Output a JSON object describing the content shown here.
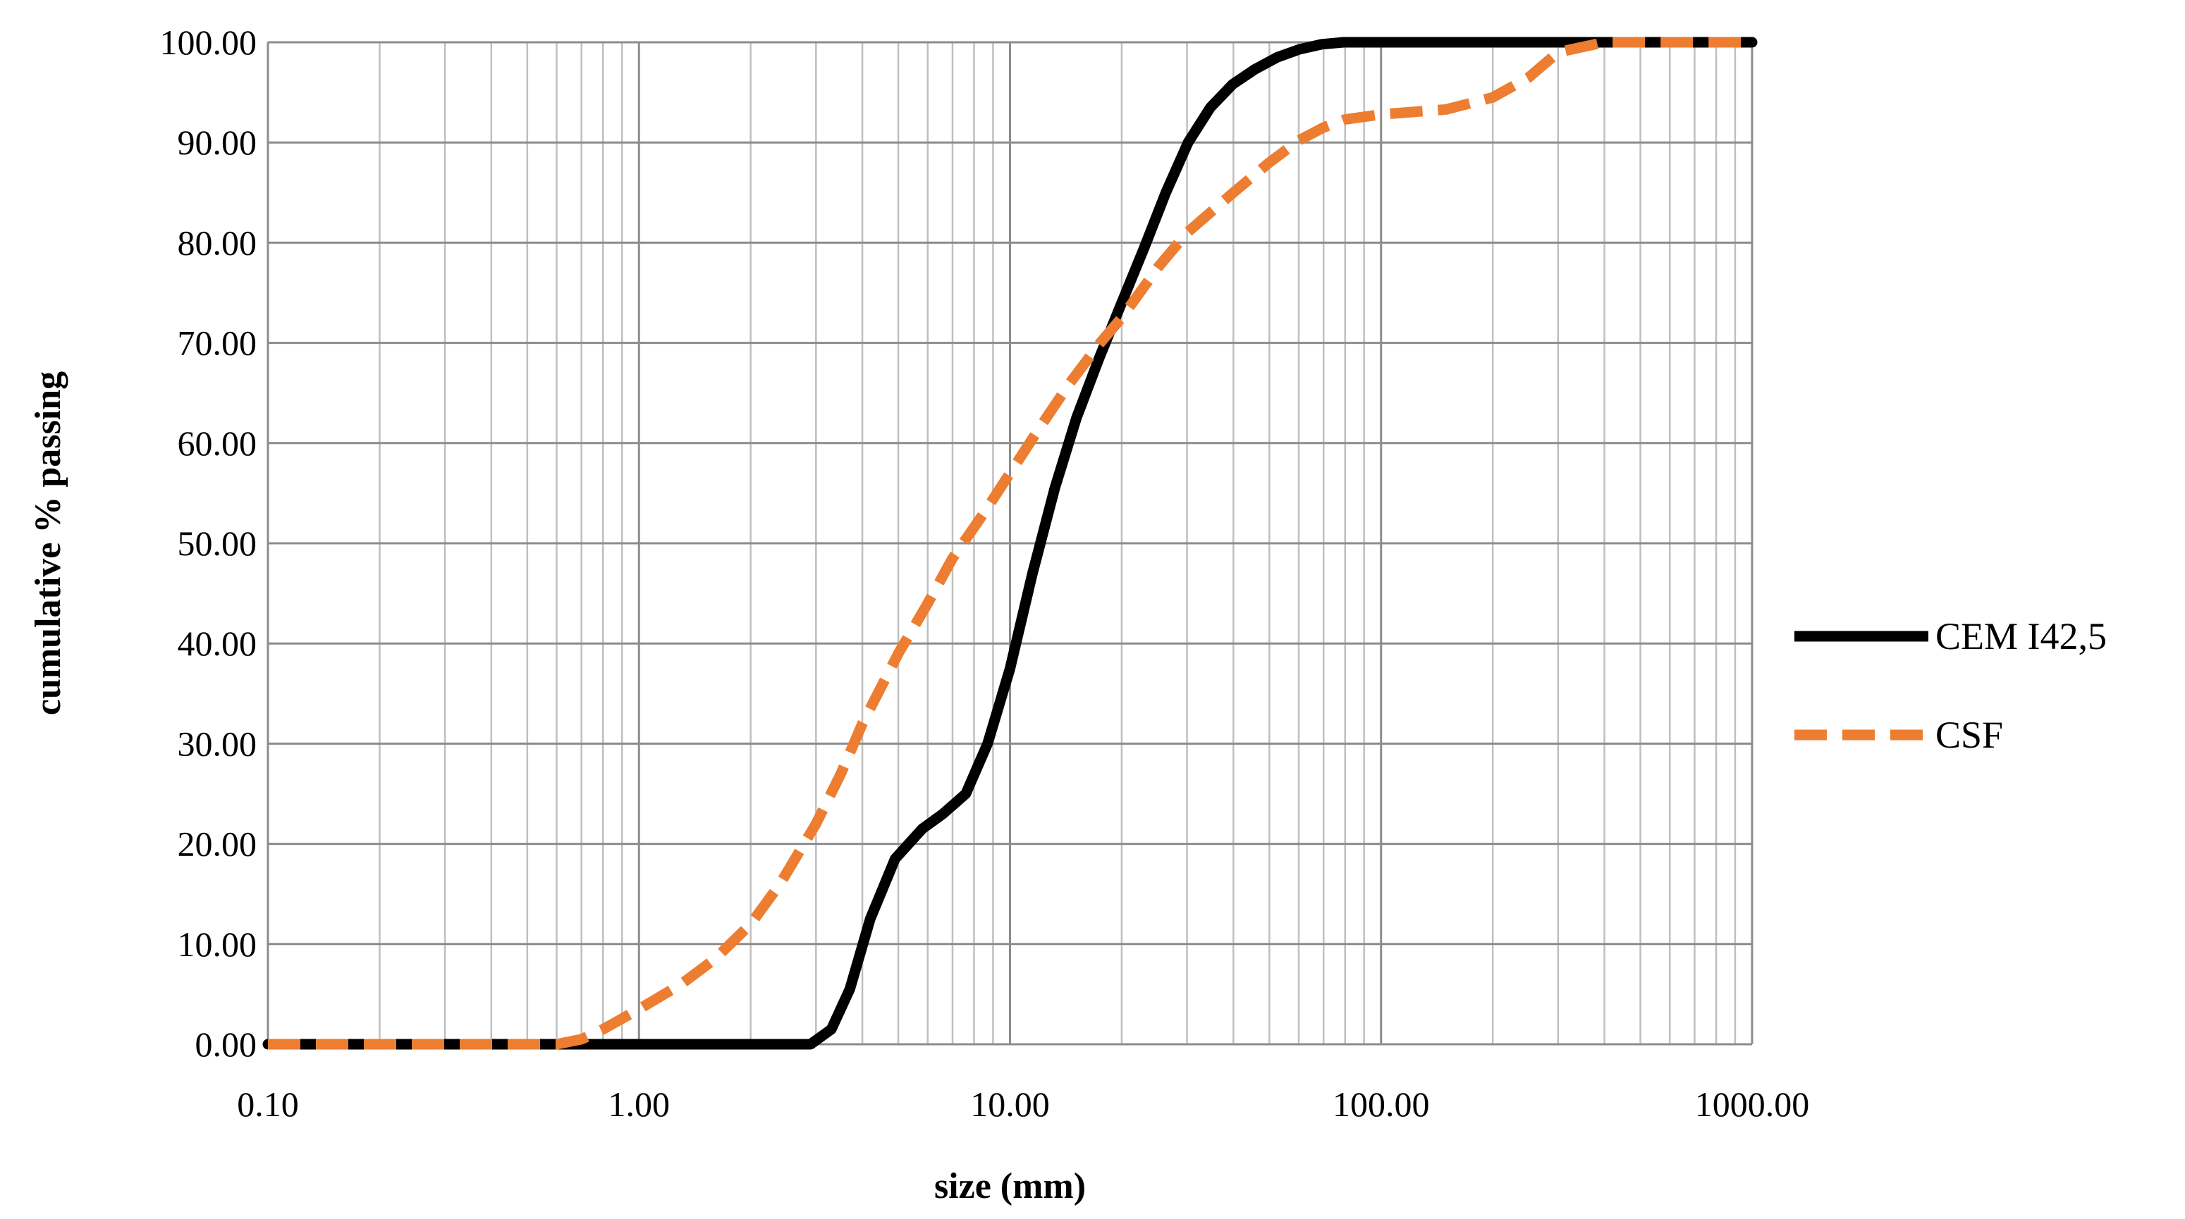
{
  "chart_data": {
    "type": "line",
    "title": "",
    "xlabel": "size (mm)",
    "ylabel": "cumulative % passing",
    "xscale": "log",
    "xlim": [
      0.1,
      1000
    ],
    "ylim": [
      0,
      100
    ],
    "grid": true,
    "legend_position": "right",
    "x_ticks": [
      0.1,
      1,
      10,
      100,
      1000
    ],
    "x_tick_labels": [
      "0.10",
      "1.00",
      "10.00",
      "100.00",
      "1000.00"
    ],
    "y_ticks": [
      0,
      10,
      20,
      30,
      40,
      50,
      60,
      70,
      80,
      90,
      100
    ],
    "y_tick_labels": [
      "0.00",
      "10.00",
      "20.00",
      "30.00",
      "40.00",
      "50.00",
      "60.00",
      "70.00",
      "80.00",
      "90.00",
      "100.00"
    ],
    "series": [
      {
        "name": "CEM I42,5",
        "color": "#000000",
        "style": "solid",
        "x": [
          0.1,
          0.5,
          1.0,
          2.0,
          2.9,
          3.3,
          3.7,
          4.2,
          4.9,
          5.8,
          6.6,
          7.6,
          8.7,
          10.0,
          11.5,
          13.2,
          15.1,
          17.4,
          20.0,
          23.0,
          26.3,
          30.2,
          34.7,
          39.8,
          45.7,
          52.5,
          60.3,
          69.2,
          79.4,
          100,
          200,
          500,
          1000
        ],
        "y": [
          0,
          0,
          0,
          0,
          0,
          1.5,
          5.5,
          12.5,
          18.5,
          21.5,
          23.0,
          25.0,
          30.0,
          37.5,
          47.0,
          55.5,
          62.5,
          68.5,
          74.0,
          79.5,
          85.0,
          90.0,
          93.5,
          95.8,
          97.3,
          98.5,
          99.3,
          99.8,
          100,
          100,
          100,
          100,
          100
        ]
      },
      {
        "name": "CSF",
        "color": "#ED7D31",
        "style": "dashed",
        "x": [
          0.1,
          0.2,
          0.4,
          0.6,
          0.7,
          0.8,
          1.0,
          1.3,
          1.6,
          2.0,
          2.4,
          3.0,
          3.5,
          4.0,
          5.0,
          6.0,
          7.0,
          8.5,
          10.0,
          12.0,
          14.5,
          17.5,
          20.0,
          25.0,
          30.0,
          40.0,
          50.0,
          60.0,
          70.0,
          80.0,
          100,
          150,
          200,
          250,
          300,
          400,
          600,
          1000
        ],
        "y": [
          0,
          0,
          0,
          0,
          0.5,
          1.5,
          3.5,
          6.0,
          8.5,
          12.0,
          16.0,
          22.0,
          27.0,
          32.0,
          39.0,
          44.0,
          48.5,
          53.0,
          57.0,
          61.5,
          66.0,
          70.0,
          72.5,
          77.5,
          81.0,
          85.0,
          88.0,
          90.2,
          91.5,
          92.3,
          92.8,
          93.3,
          94.5,
          96.5,
          99.0,
          100,
          100,
          100
        ]
      }
    ]
  }
}
